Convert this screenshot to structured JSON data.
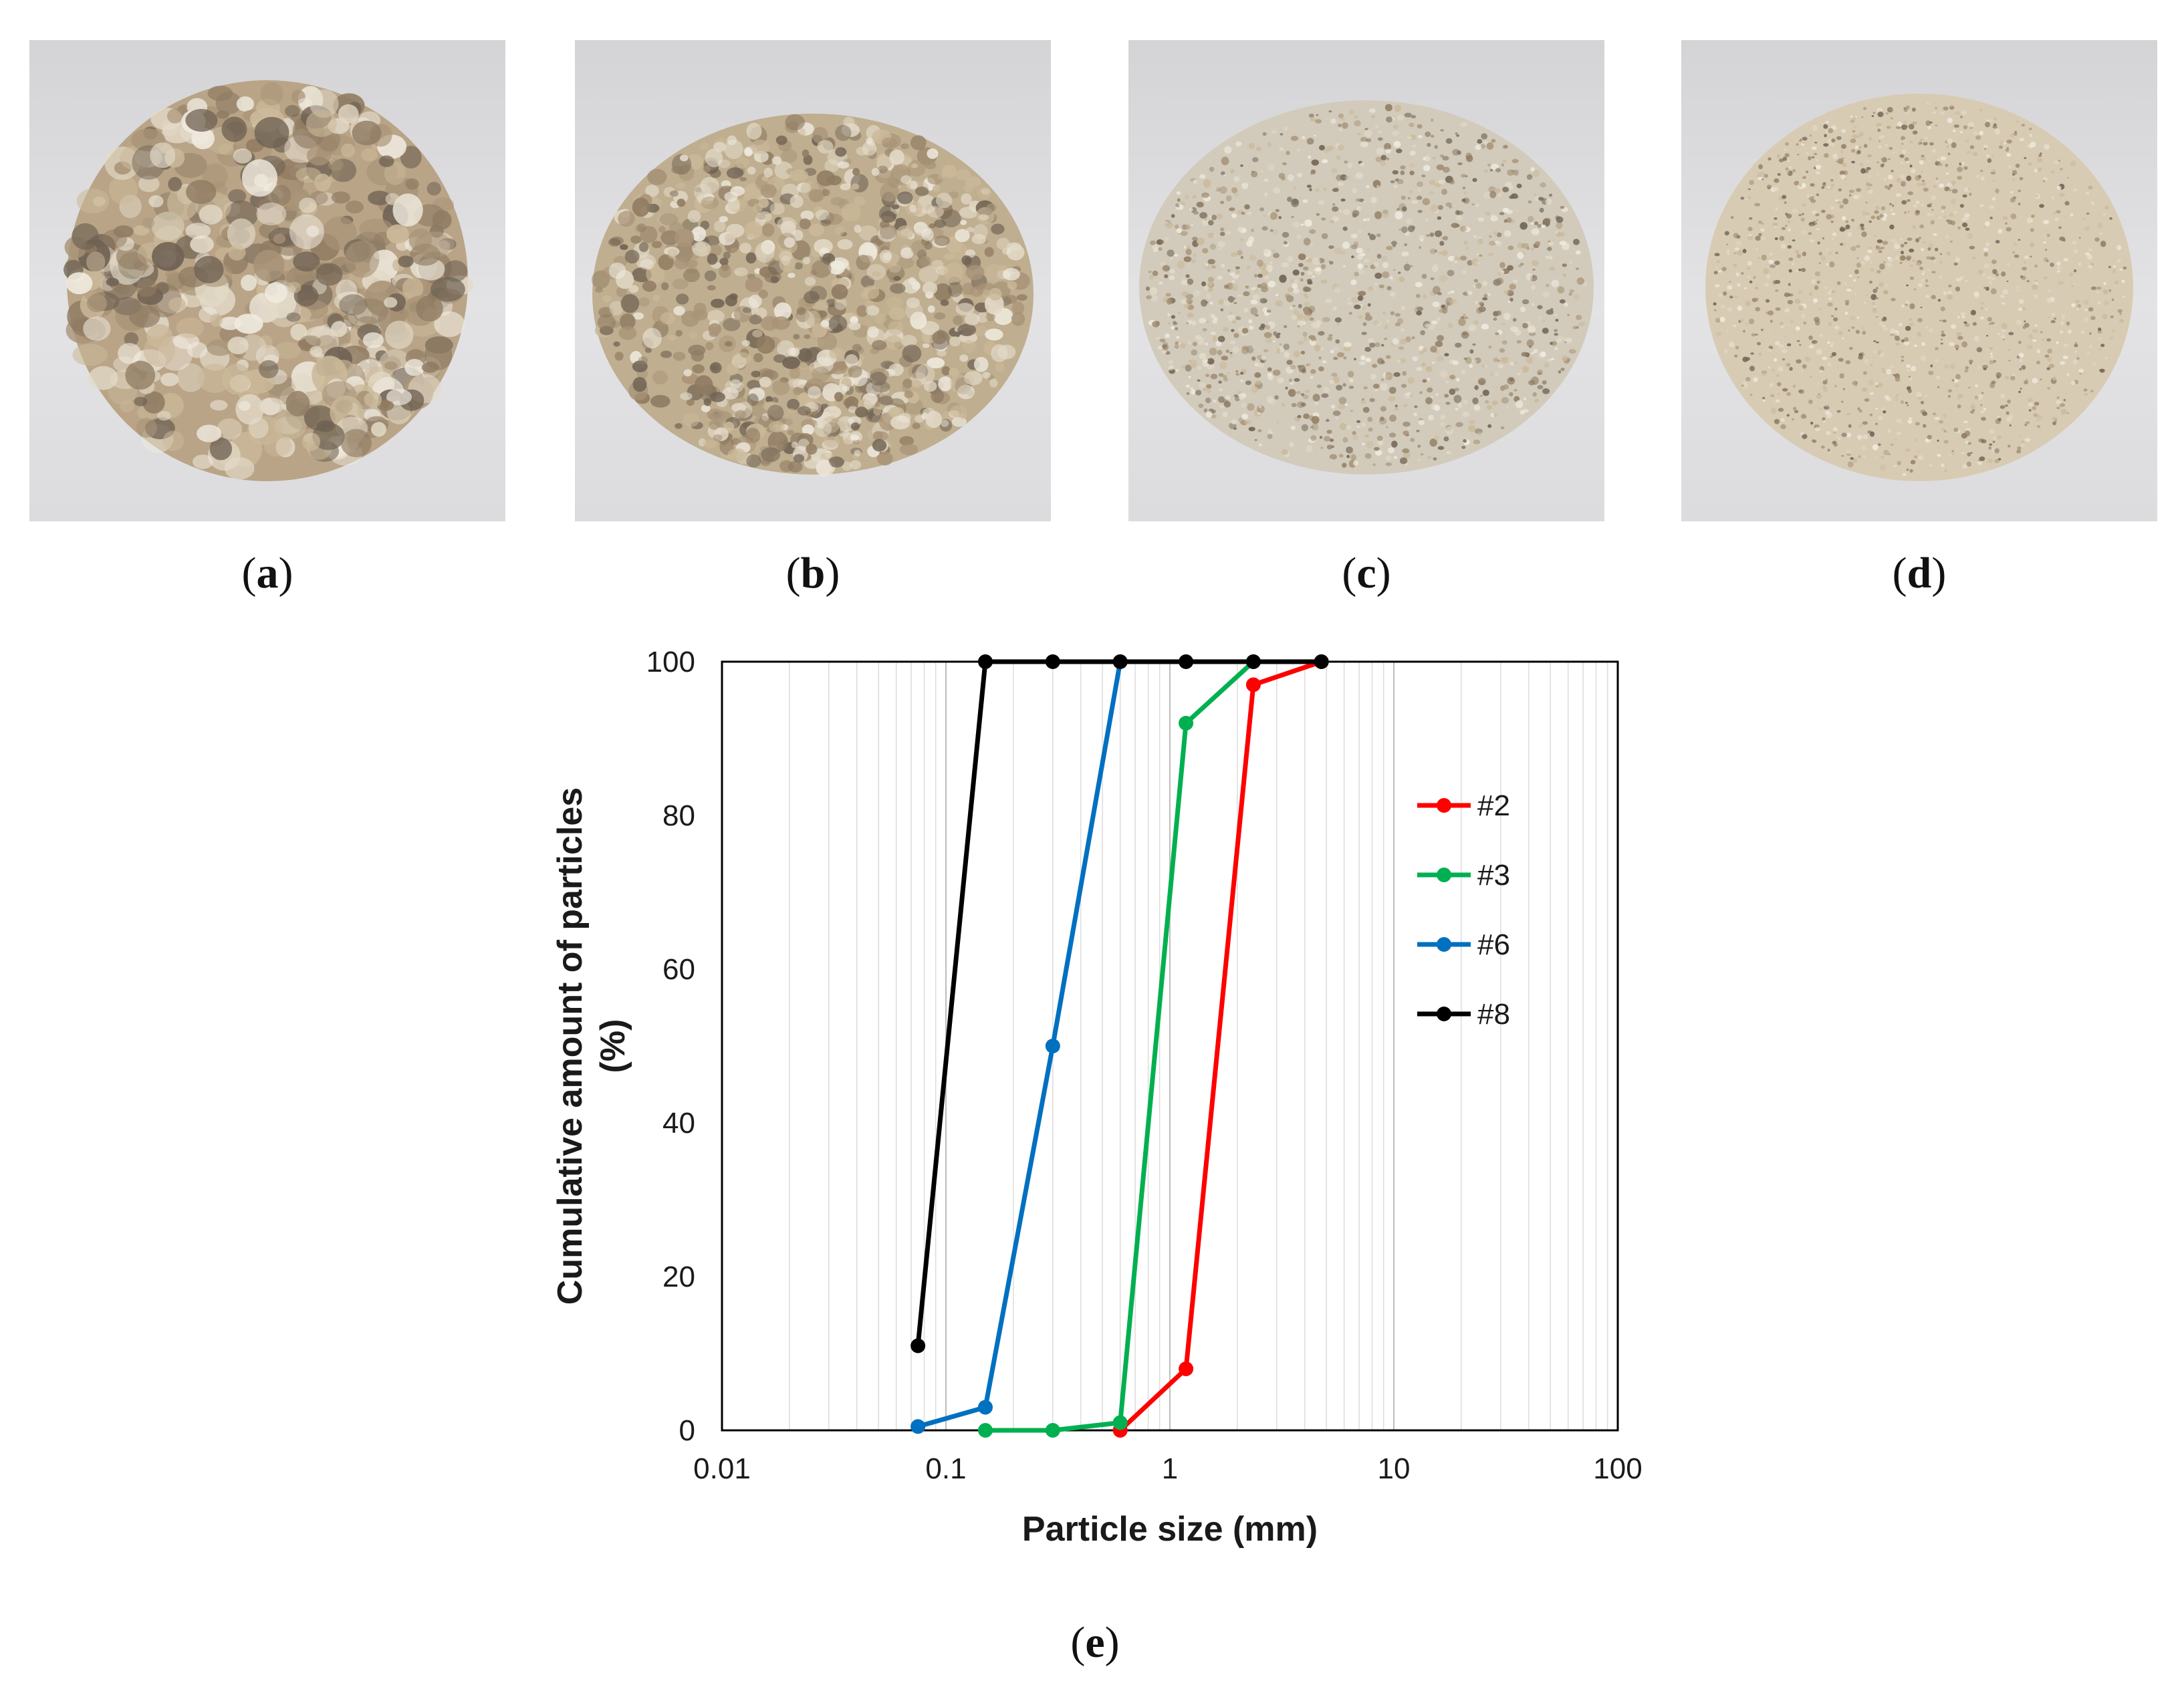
{
  "panels": {
    "a": {
      "label": "a"
    },
    "b": {
      "label": "b"
    },
    "c": {
      "label": "c"
    },
    "d": {
      "label": "d"
    },
    "e": {
      "label": "e"
    }
  },
  "photos": [
    {
      "panel": "a",
      "material": "coarse aggregate",
      "tone": "#b9a487"
    },
    {
      "panel": "b",
      "material": "medium aggregate",
      "tone": "#bfae8f"
    },
    {
      "panel": "c",
      "material": "fine sand",
      "tone": "#d2cbbb"
    },
    {
      "panel": "d",
      "material": "very fine sand",
      "tone": "#d8cbb4"
    }
  ],
  "chart_data": {
    "type": "line",
    "title": "",
    "xlabel": "Particle size (mm)",
    "ylabel": "Cumulative amount of particles (%)",
    "xscale": "log",
    "xlim": [
      0.01,
      100
    ],
    "ylim": [
      0,
      100
    ],
    "x_ticks": [
      0.01,
      0.1,
      1,
      10,
      100
    ],
    "x_tick_labels": [
      "0.01",
      "0.1",
      "1",
      "10",
      "100"
    ],
    "y_ticks": [
      0,
      20,
      40,
      60,
      80,
      100
    ],
    "y_tick_labels": [
      "0",
      "20",
      "40",
      "60",
      "80",
      "100"
    ],
    "grid": "log-minor vertical",
    "legend_position": "right",
    "series": [
      {
        "name": "#2",
        "color": "#ff0000",
        "x": [
          0.6,
          1.18,
          2.36,
          4.75
        ],
        "y": [
          0,
          8,
          97,
          100
        ]
      },
      {
        "name": "#3",
        "color": "#00b050",
        "x": [
          0.15,
          0.3,
          0.6,
          1.18,
          2.36
        ],
        "y": [
          0,
          0,
          1,
          92,
          100
        ]
      },
      {
        "name": "#6",
        "color": "#0070c0",
        "x": [
          0.075,
          0.15,
          0.3,
          0.6
        ],
        "y": [
          0.5,
          3,
          50,
          100
        ]
      },
      {
        "name": "#8",
        "color": "#000000",
        "x": [
          0.075,
          0.15,
          0.3,
          0.6,
          1.18,
          2.36,
          4.75
        ],
        "y": [
          11,
          100,
          100,
          100,
          100,
          100,
          100
        ]
      }
    ]
  }
}
